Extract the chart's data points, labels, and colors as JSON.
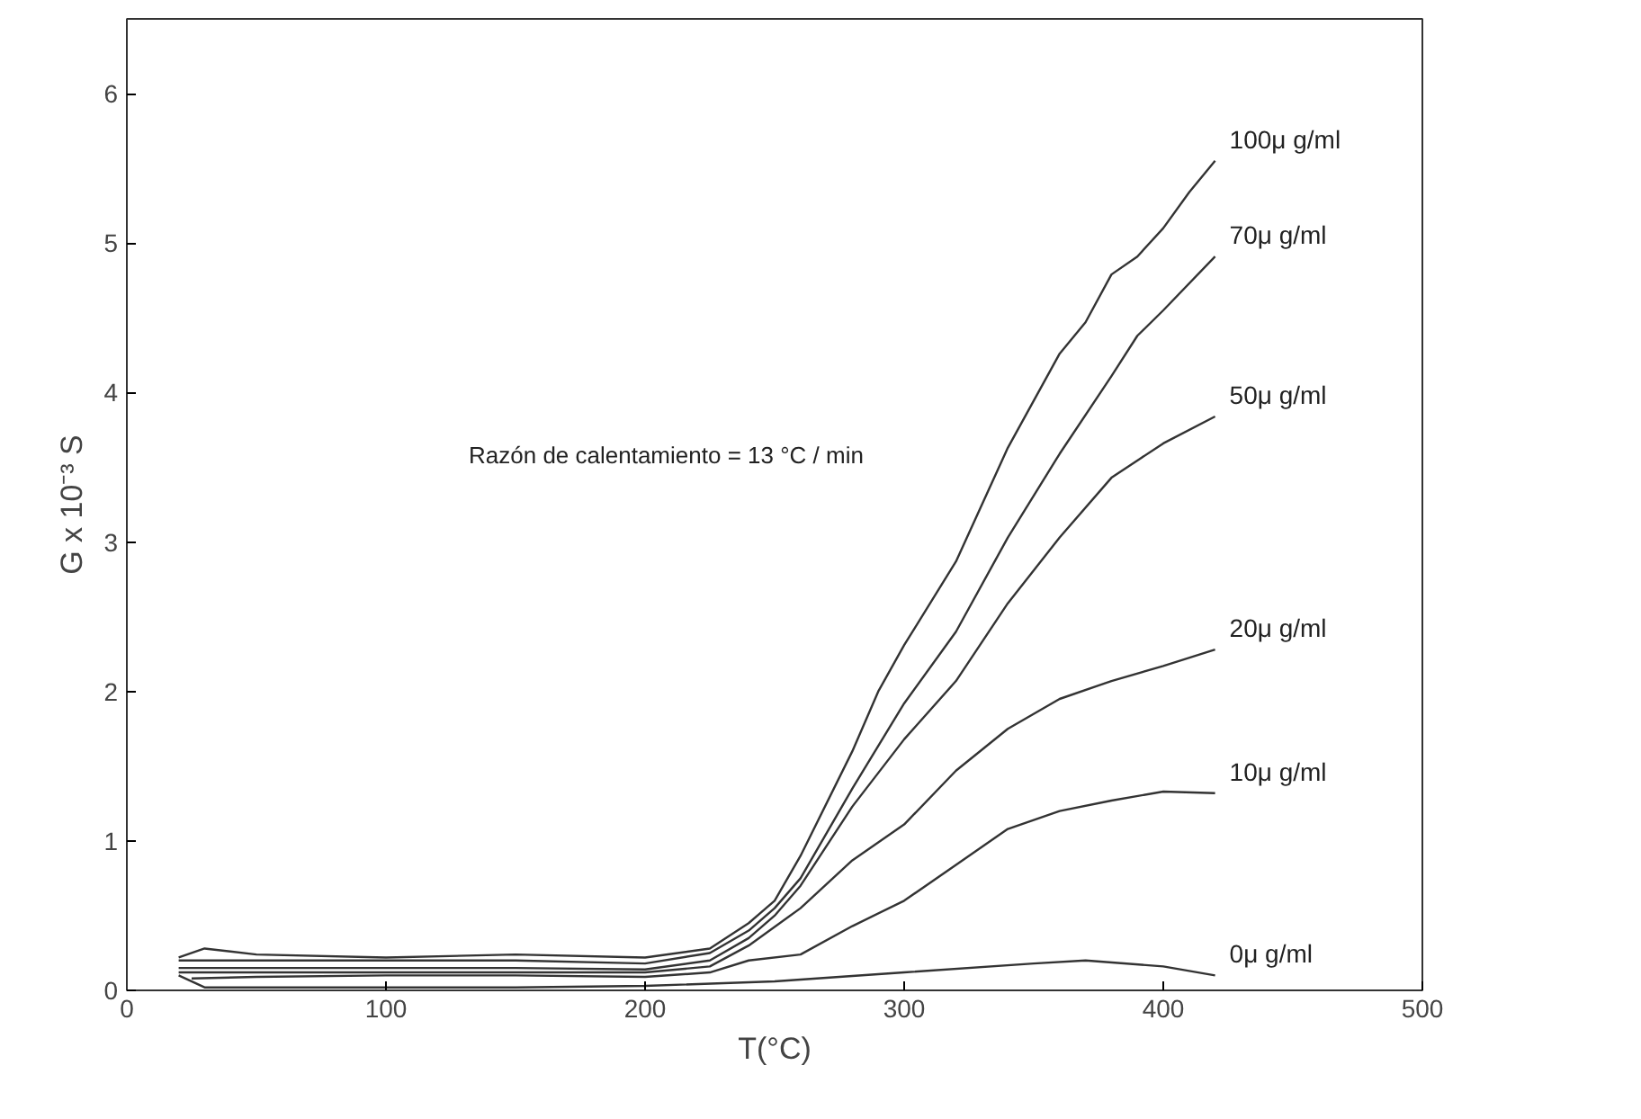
{
  "chart_data": {
    "type": "line",
    "xlabel": "T(°C)",
    "ylabel": "G x 10⁻³ S",
    "annotations": [
      "Razón de calentamiento = 13 °C / min"
    ],
    "xlim": [
      0,
      500
    ],
    "ylim": [
      0,
      6.5
    ],
    "xticks": [
      0,
      100,
      200,
      300,
      400,
      500
    ],
    "yticks": [
      0,
      1,
      2,
      3,
      4,
      5,
      6
    ],
    "grid": false,
    "marker": "none",
    "line_style": "solid",
    "series": [
      {
        "name": "100μ g/ml",
        "color": "#333333",
        "x": [
          20,
          30,
          50,
          100,
          150,
          200,
          225,
          240,
          250,
          260,
          280,
          290,
          300,
          320,
          340,
          360,
          370,
          380,
          390,
          400,
          410,
          420
        ],
        "values": [
          0.22,
          0.28,
          0.24,
          0.22,
          0.24,
          0.22,
          0.28,
          0.45,
          0.6,
          0.9,
          1.6,
          2.0,
          2.31,
          2.87,
          3.63,
          4.26,
          4.47,
          4.79,
          4.91,
          5.1,
          5.34,
          5.55
        ]
      },
      {
        "name": "70μ g/ml",
        "color": "#333333",
        "x": [
          20,
          50,
          100,
          150,
          200,
          225,
          240,
          250,
          260,
          280,
          300,
          320,
          340,
          360,
          380,
          390,
          400,
          420
        ],
        "values": [
          0.2,
          0.2,
          0.2,
          0.2,
          0.18,
          0.25,
          0.4,
          0.55,
          0.75,
          1.35,
          1.92,
          2.4,
          3.03,
          3.59,
          4.11,
          4.38,
          4.55,
          4.91
        ]
      },
      {
        "name": "50μ g/ml",
        "color": "#333333",
        "x": [
          20,
          50,
          100,
          150,
          200,
          225,
          240,
          250,
          260,
          280,
          300,
          320,
          340,
          360,
          380,
          400,
          420
        ],
        "values": [
          0.15,
          0.15,
          0.15,
          0.15,
          0.14,
          0.2,
          0.35,
          0.5,
          0.7,
          1.23,
          1.68,
          2.07,
          2.59,
          3.03,
          3.43,
          3.66,
          3.84
        ]
      },
      {
        "name": "20μ g/ml",
        "color": "#333333",
        "x": [
          20,
          50,
          100,
          150,
          200,
          225,
          240,
          260,
          280,
          300,
          320,
          340,
          360,
          380,
          400,
          420
        ],
        "values": [
          0.12,
          0.12,
          0.12,
          0.12,
          0.12,
          0.16,
          0.3,
          0.55,
          0.87,
          1.11,
          1.47,
          1.75,
          1.95,
          2.07,
          2.17,
          2.28
        ]
      },
      {
        "name": "10μ g/ml",
        "color": "#333333",
        "x": [
          25,
          50,
          100,
          150,
          200,
          225,
          240,
          260,
          280,
          300,
          320,
          340,
          360,
          380,
          400,
          420
        ],
        "values": [
          0.08,
          0.09,
          0.1,
          0.1,
          0.09,
          0.12,
          0.2,
          0.24,
          0.43,
          0.6,
          0.84,
          1.08,
          1.2,
          1.27,
          1.33,
          1.32
        ]
      },
      {
        "name": "0μ g/ml",
        "color": "#333333",
        "x": [
          20,
          30,
          50,
          100,
          150,
          200,
          250,
          300,
          350,
          370,
          400,
          420
        ],
        "values": [
          0.1,
          0.02,
          0.02,
          0.02,
          0.02,
          0.03,
          0.06,
          0.12,
          0.18,
          0.2,
          0.16,
          0.1
        ]
      }
    ]
  }
}
